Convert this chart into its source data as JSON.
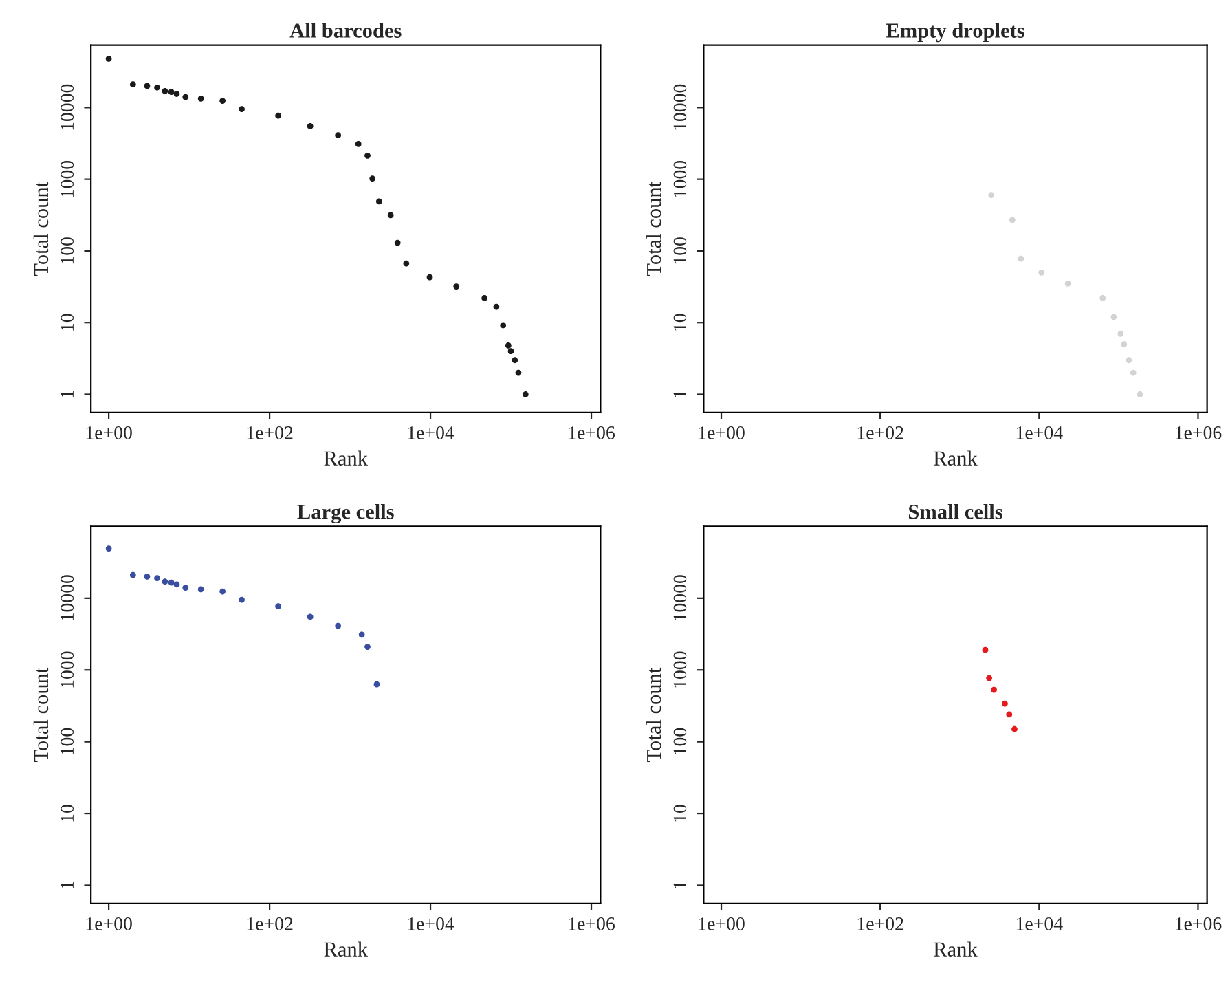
{
  "chart_data": [
    {
      "type": "scatter",
      "title": "All barcodes",
      "xlabel": "Rank",
      "ylabel": "Total count",
      "log": "xy",
      "marker": "circle",
      "grid": false,
      "xlim": [
        0.6,
        1300000
      ],
      "ylim": [
        0.56,
        74000
      ],
      "xticks": [
        {
          "value": 1,
          "label": "1e+00"
        },
        {
          "value": 100,
          "label": "1e+02"
        },
        {
          "value": 10000,
          "label": "1e+04"
        },
        {
          "value": 1000000,
          "label": "1e+06"
        }
      ],
      "yticks": [
        1,
        10,
        100,
        1000,
        10000
      ],
      "series": [
        {
          "color": "#1a1a1a",
          "x": [
            1,
            2,
            3,
            4,
            5,
            6,
            7,
            9,
            14,
            26,
            45,
            128,
            320,
            710,
            1270,
            1650,
            1900,
            2300,
            3200,
            3900,
            5000,
            9800,
            21000,
            47000,
            66000,
            80000,
            93000,
            100000,
            112000,
            124000,
            152000
          ],
          "values": [
            48000,
            21000,
            20000,
            19000,
            17000,
            16500,
            15500,
            14000,
            13300,
            12400,
            9500,
            7700,
            5500,
            4100,
            3100,
            2130,
            1020,
            490,
            315,
            130,
            67,
            43,
            32,
            22,
            16.6,
            9.2,
            4.8,
            4,
            3,
            2,
            1
          ]
        }
      ]
    },
    {
      "type": "scatter",
      "title": "Empty droplets",
      "xlabel": "Rank",
      "ylabel": "Total count",
      "log": "xy",
      "marker": "circle",
      "grid": false,
      "xlim": [
        0.6,
        1300000
      ],
      "ylim": [
        0.56,
        74000
      ],
      "xticks": [
        {
          "value": 1,
          "label": "1e+00"
        },
        {
          "value": 100,
          "label": "1e+02"
        },
        {
          "value": 10000,
          "label": "1e+04"
        },
        {
          "value": 1000000,
          "label": "1e+06"
        }
      ],
      "yticks": [
        1,
        10,
        100,
        1000,
        10000
      ],
      "series": [
        {
          "color": "#d3d3d3",
          "x": [
            2500,
            4600,
            5900,
            10700,
            23000,
            63000,
            87000,
            106000,
            117000,
            135000,
            153000,
            186000
          ],
          "values": [
            600,
            270,
            78,
            50,
            35,
            22,
            12,
            7,
            5,
            3,
            2,
            1
          ]
        }
      ]
    },
    {
      "type": "scatter",
      "title": "Large cells",
      "xlabel": "Rank",
      "ylabel": "Total count",
      "log": "xy",
      "marker": "circle",
      "grid": false,
      "xlim": [
        0.6,
        1300000
      ],
      "ylim": [
        0.56,
        100000
      ],
      "xticks": [
        {
          "value": 1,
          "label": "1e+00"
        },
        {
          "value": 100,
          "label": "1e+02"
        },
        {
          "value": 10000,
          "label": "1e+04"
        },
        {
          "value": 1000000,
          "label": "1e+06"
        }
      ],
      "yticks": [
        1,
        10,
        100,
        1000,
        10000
      ],
      "series": [
        {
          "color": "#3a4ea0",
          "x": [
            1,
            2,
            3,
            4,
            5,
            6,
            7,
            9,
            14,
            26,
            45,
            128,
            320,
            710,
            1400,
            1650,
            2150
          ],
          "values": [
            49000,
            21000,
            20000,
            19000,
            17000,
            16500,
            15500,
            14000,
            13300,
            12400,
            9500,
            7700,
            5500,
            4100,
            3100,
            2100,
            630
          ]
        }
      ]
    },
    {
      "type": "scatter",
      "title": "Small cells",
      "xlabel": "Rank",
      "ylabel": "Total count",
      "log": "xy",
      "marker": "circle",
      "grid": false,
      "xlim": [
        0.6,
        1300000
      ],
      "ylim": [
        0.56,
        100000
      ],
      "xticks": [
        {
          "value": 1,
          "label": "1e+00"
        },
        {
          "value": 100,
          "label": "1e+02"
        },
        {
          "value": 10000,
          "label": "1e+04"
        },
        {
          "value": 1000000,
          "label": "1e+06"
        }
      ],
      "yticks": [
        1,
        10,
        100,
        1000,
        10000
      ],
      "series": [
        {
          "color": "#e41a1c",
          "x": [
            2100,
            2350,
            2700,
            3700,
            4200,
            4900
          ],
          "values": [
            1900,
            770,
            530,
            340,
            240,
            150
          ]
        }
      ]
    }
  ]
}
